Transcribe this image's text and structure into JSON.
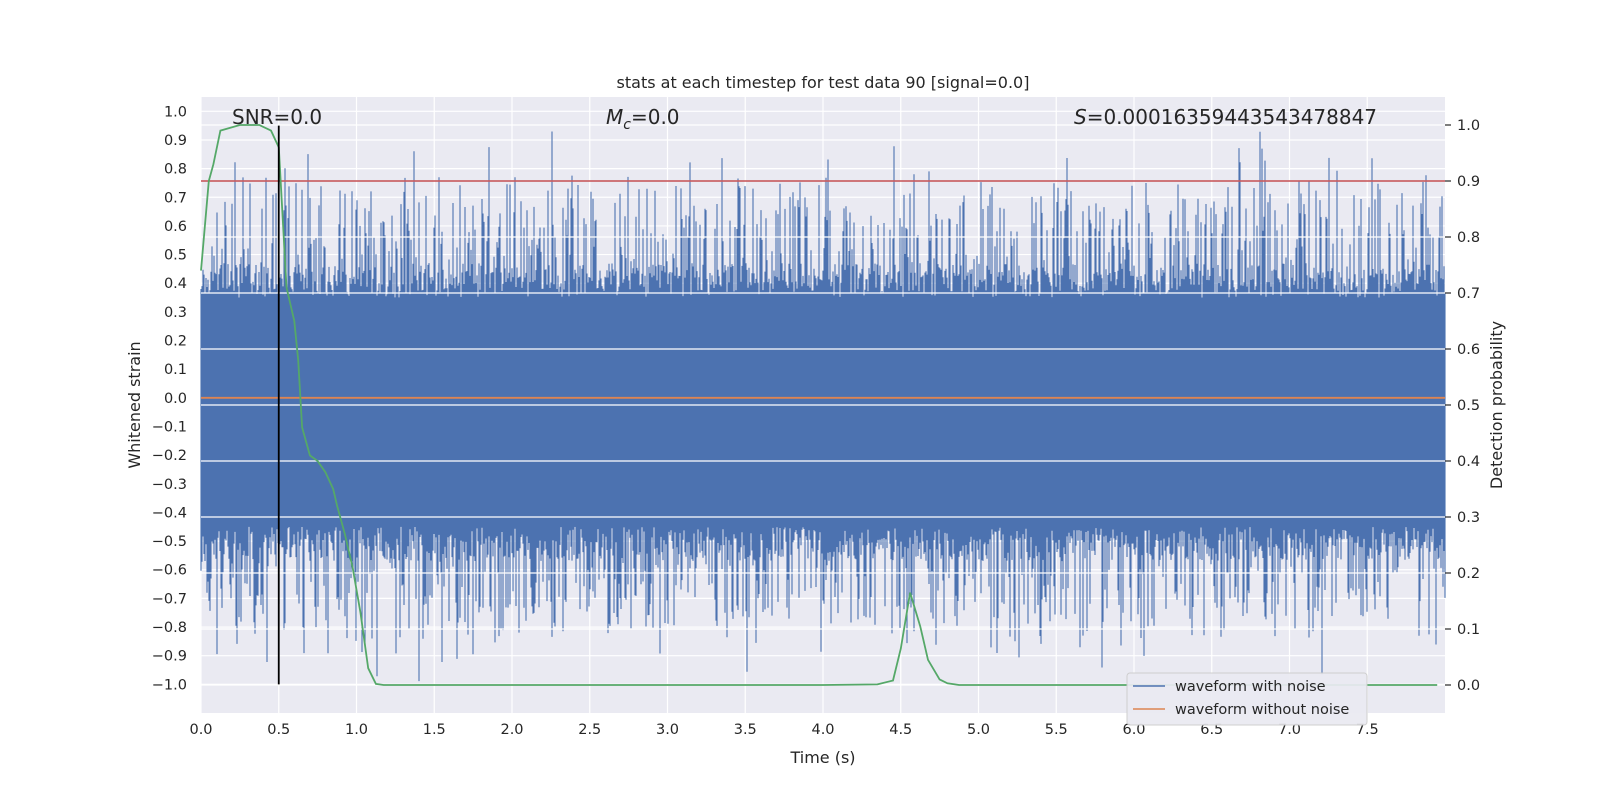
{
  "chart_data": {
    "type": "line",
    "title": "stats at each timestep for test data 90 [signal=0.0]",
    "xlabel": "Time (s)",
    "ylabel_left": "Whitened strain",
    "ylabel_right": "Detection probability",
    "xlim": [
      0.0,
      8.0
    ],
    "ylim_left": [
      -1.1,
      1.05
    ],
    "ylim_right": [
      -0.05,
      1.05
    ],
    "x_ticks": [
      "0.0",
      "0.5",
      "1.0",
      "1.5",
      "2.0",
      "2.5",
      "3.0",
      "3.5",
      "4.0",
      "4.5",
      "5.0",
      "5.5",
      "6.0",
      "6.5",
      "7.0",
      "7.5"
    ],
    "y_ticks_left": [
      "1.0",
      "0.9",
      "0.8",
      "0.7",
      "0.6",
      "0.5",
      "0.4",
      "0.3",
      "0.2",
      "0.1",
      "0.0",
      "-0.1",
      "-0.2",
      "-0.3",
      "-0.4",
      "-0.5",
      "-0.6",
      "-0.7",
      "-0.8",
      "-0.9",
      "-1.0"
    ],
    "y_ticks_right": [
      "1.0",
      "0.9",
      "0.8",
      "0.7",
      "0.6",
      "0.5",
      "0.4",
      "0.3",
      "0.2",
      "0.1",
      "0.0"
    ],
    "annotations": {
      "snr": "SNR=0.0",
      "mc_symbol": "M",
      "mc_sub": "c",
      "mc_value": "=0.0",
      "s_symbol": "S",
      "s_value": "=0.00016359443543478847"
    },
    "threshold_line": {
      "axis": "right",
      "y": 0.9,
      "color": "#c44e52"
    },
    "vertical_marker": {
      "x": 0.5,
      "y_range_left": [
        -1.0,
        0.95
      ],
      "color": "#000000"
    },
    "series": [
      {
        "name": "waveform with noise",
        "axis": "left",
        "color": "#4c72b0",
        "kind": "noise-band",
        "core_range": [
          -0.45,
          0.35
        ],
        "peak_max": 0.93,
        "peak_min": -1.0,
        "sample_rate": 2048
      },
      {
        "name": "waveform without noise",
        "axis": "left",
        "color": "#dd8452",
        "x": [
          0.0,
          8.0
        ],
        "y": [
          0.0,
          0.0
        ]
      },
      {
        "name": "",
        "axis": "right",
        "color": "#55a868",
        "x": [
          0.0,
          0.05,
          0.08,
          0.125,
          0.25,
          0.375,
          0.45,
          0.5,
          0.55,
          0.6,
          0.625,
          0.65,
          0.7,
          0.75,
          0.8,
          0.85,
          0.875,
          0.925,
          0.975,
          1.025,
          1.075,
          1.125,
          1.175,
          2.0,
          3.0,
          4.0,
          4.35,
          4.45,
          4.5,
          4.56,
          4.625,
          4.675,
          4.75,
          4.8,
          4.875,
          5.5,
          6.5,
          7.5,
          7.95
        ],
        "y": [
          0.74,
          0.9,
          0.93,
          0.99,
          1.0,
          1.0,
          0.99,
          0.96,
          0.71,
          0.65,
          0.58,
          0.46,
          0.41,
          0.4,
          0.38,
          0.35,
          0.32,
          0.27,
          0.21,
          0.13,
          0.03,
          0.002,
          0.0,
          0.0,
          0.0,
          0.0,
          0.001,
          0.008,
          0.065,
          0.165,
          0.105,
          0.045,
          0.01,
          0.003,
          0.0,
          0.0,
          0.0,
          0.0,
          0.0
        ]
      }
    ],
    "legend": {
      "placement": "lower-right",
      "entries": [
        "waveform with noise",
        "waveform without noise"
      ]
    },
    "grid": true
  }
}
